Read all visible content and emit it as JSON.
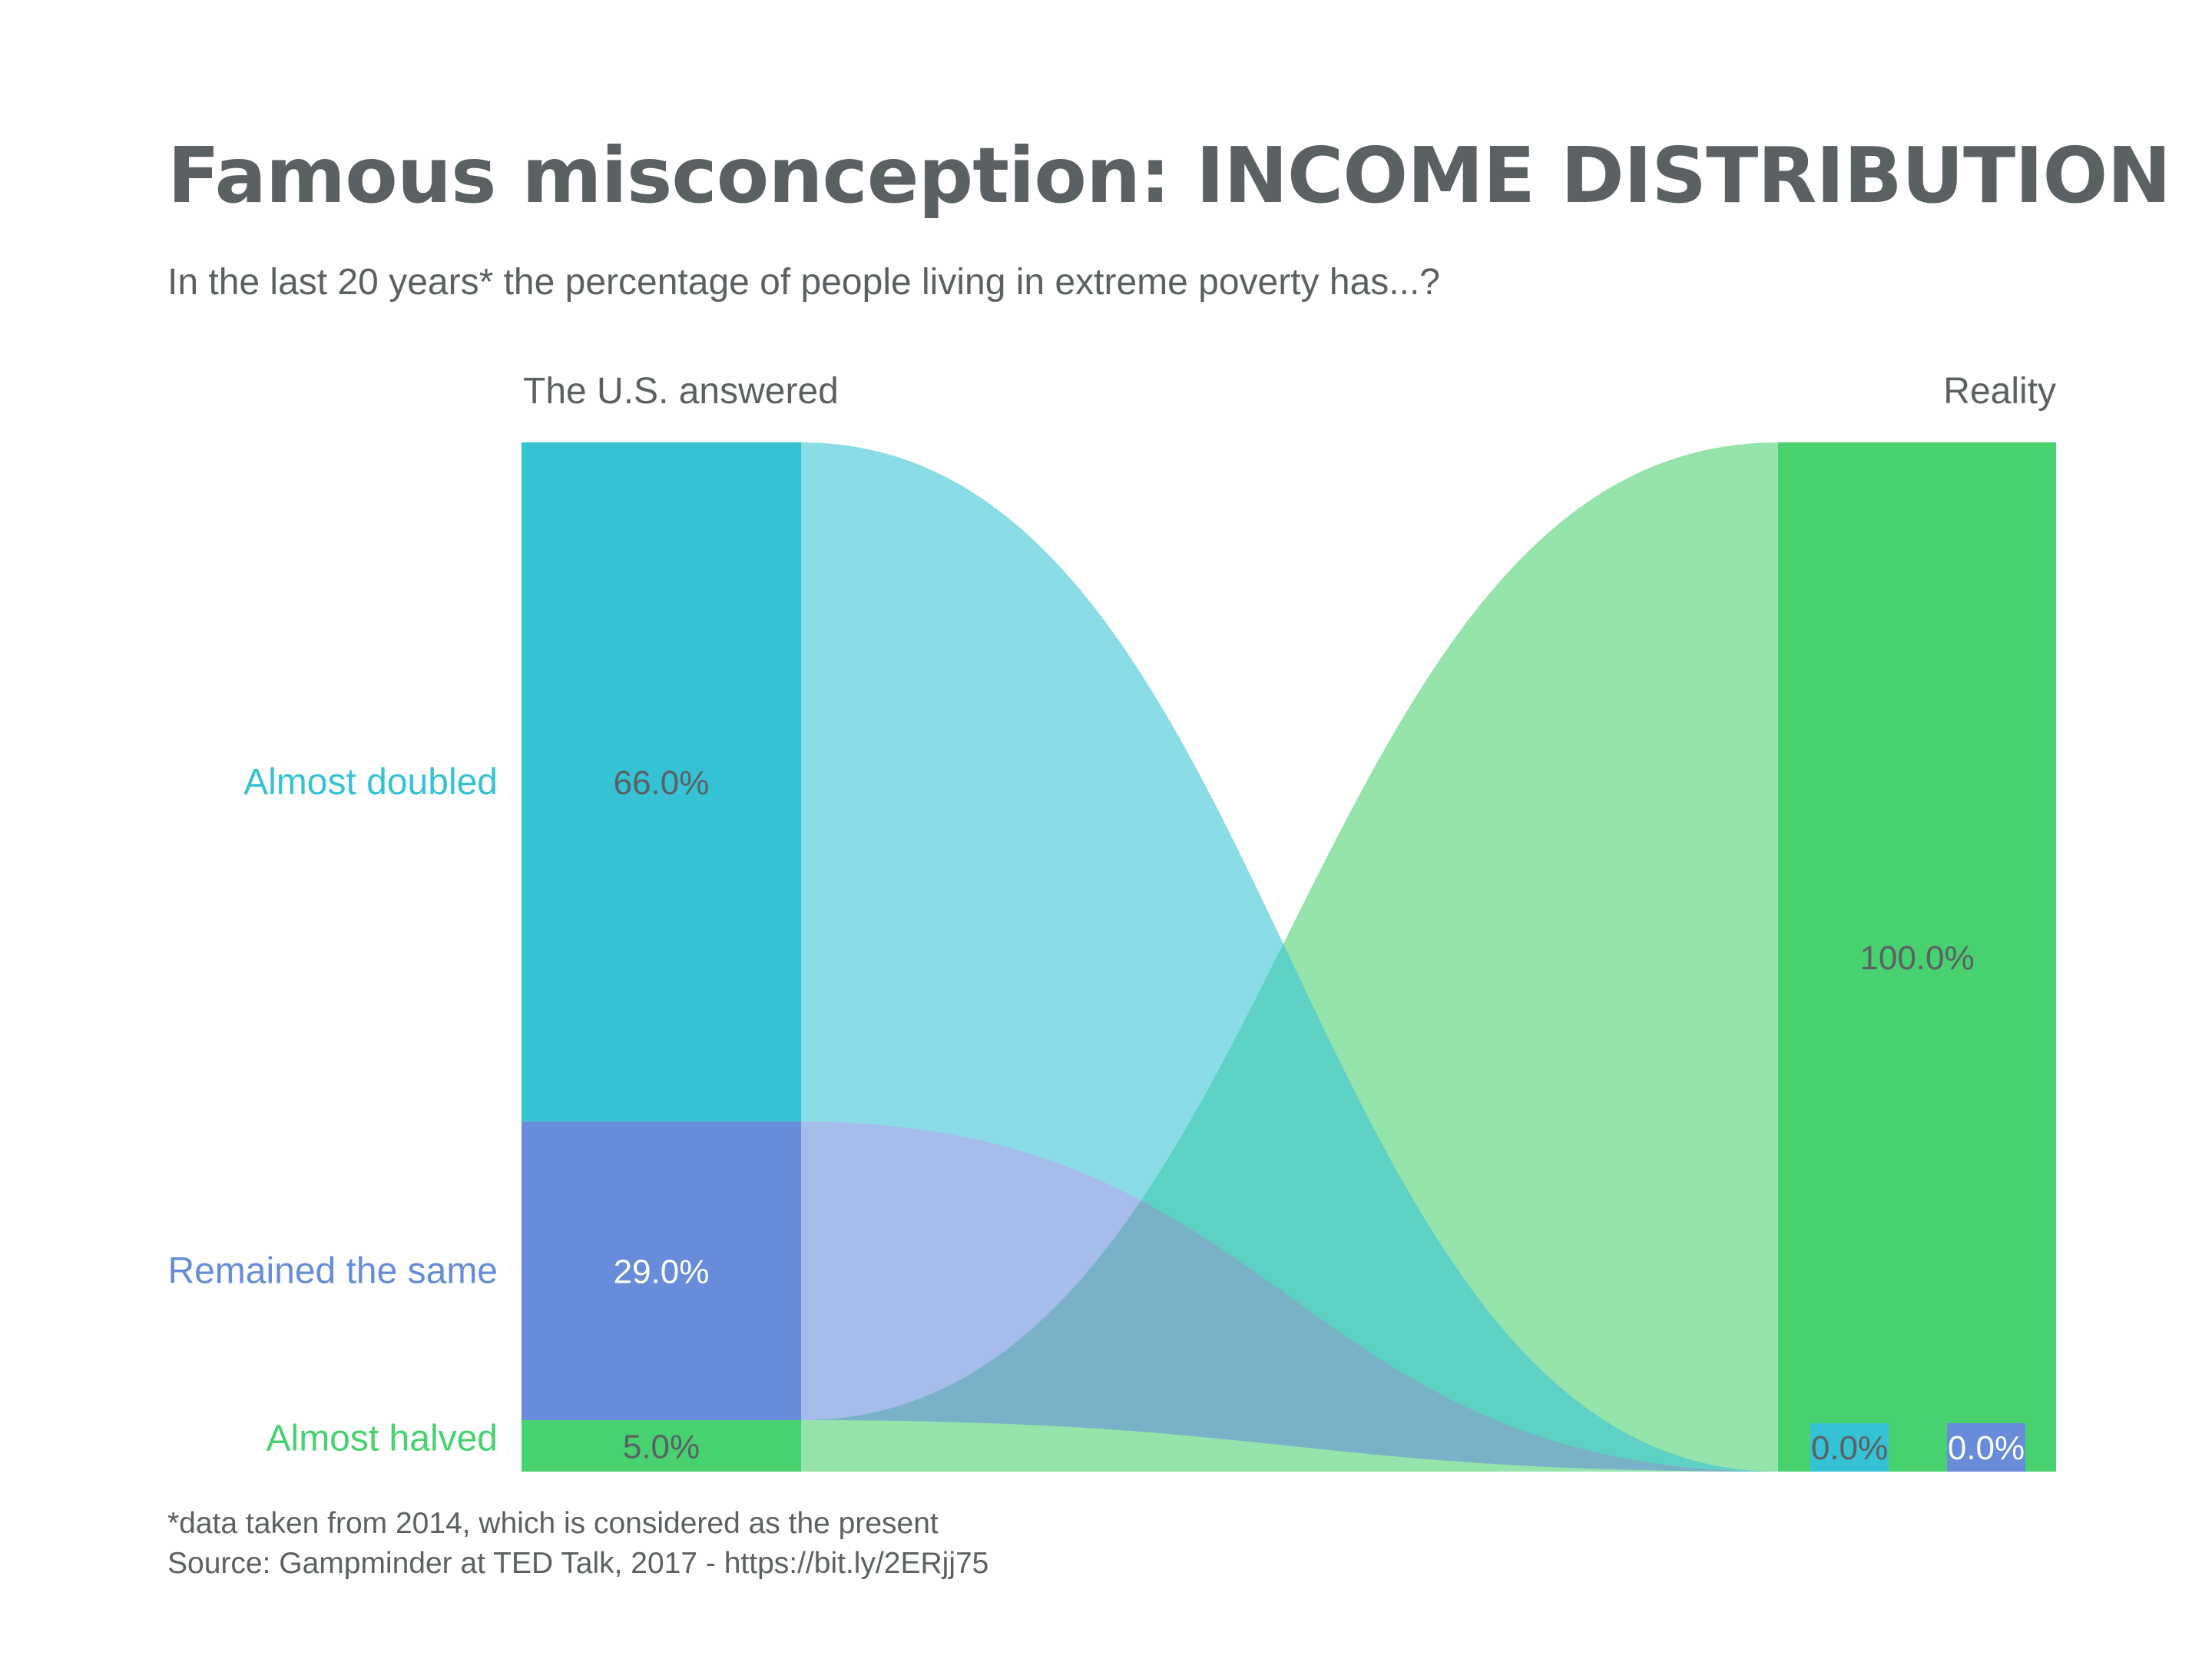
{
  "title": "Famous misconception: INCOME DISTRIBUTION",
  "subtitle": "In the last 20 years* the percentage of people living in extreme poverty has...?",
  "footnotes": [
    "*data taken from 2014, which is considered as the present",
    "Source: Gampminder at TED Talk, 2017 - https://bit.ly/2ERjj75"
  ],
  "chart_data": {
    "type": "sankey",
    "columns": [
      "The U.S. answered",
      "Reality"
    ],
    "categories": [
      "Almost doubled",
      "Remained the same",
      "Almost halved"
    ],
    "colors": {
      "Almost doubled": "#36c2d5",
      "Remained the same": "#668cda",
      "Almost halved": "#47d16f"
    },
    "left_values": [
      66.0,
      29.0,
      5.0
    ],
    "left_labels": [
      "66.0%",
      "29.0%",
      "5.0%"
    ],
    "right_values": [
      0.0,
      0.0,
      100.0
    ],
    "right_labels": [
      "0.0%",
      "0.0%",
      "100.0%"
    ],
    "flows": [
      {
        "from": "Almost doubled",
        "to": "Almost halved"
      },
      {
        "from": "Remained the same",
        "to": "Almost halved"
      },
      {
        "from": "Almost halved",
        "to": "Almost halved"
      }
    ]
  }
}
